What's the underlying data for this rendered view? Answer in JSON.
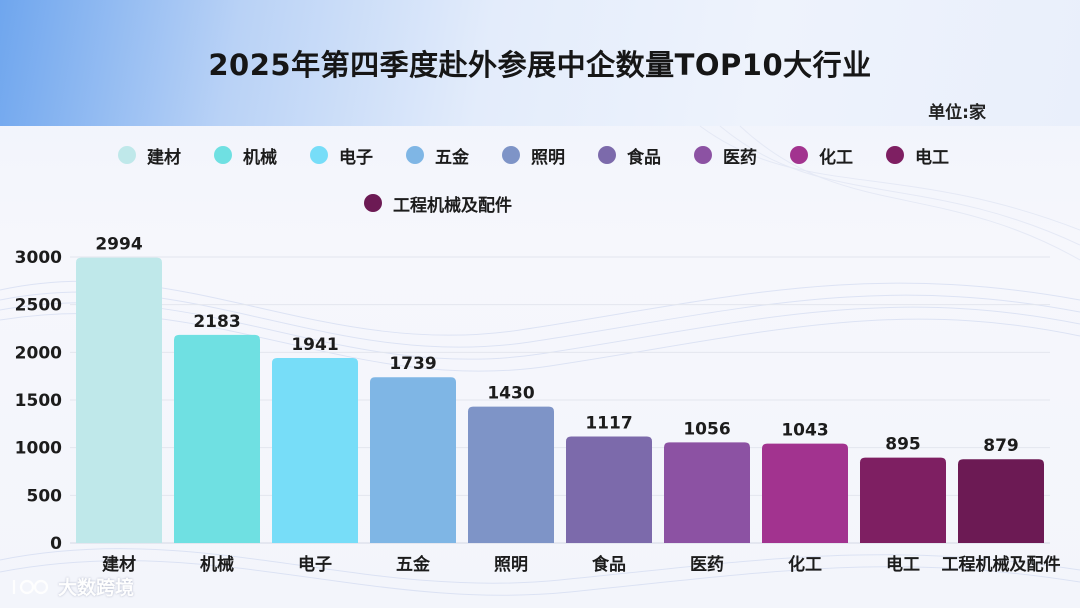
{
  "title": "2025年第四季度赴外参展中企数量TOP10大行业",
  "unit": "单位:家",
  "watermark": "大数跨境",
  "chart_data": {
    "type": "bar",
    "title": "2025年第四季度赴外参展中企数量TOP10大行业",
    "xlabel": "",
    "ylabel": "",
    "ylim": [
      0,
      3000
    ],
    "yticks": [
      0,
      500,
      1000,
      1500,
      2000,
      2500,
      3000
    ],
    "grid": true,
    "legend_position": "top",
    "categories": [
      "建材",
      "机械",
      "电子",
      "五金",
      "照明",
      "食品",
      "医药",
      "化工",
      "电工",
      "工程机械及配件"
    ],
    "values": [
      2994,
      2183,
      1941,
      1739,
      1430,
      1117,
      1056,
      1043,
      895,
      879
    ],
    "colors": [
      "#bfe8ea",
      "#6fe0e2",
      "#77ddf8",
      "#7fb6e5",
      "#7e94c7",
      "#7c6aab",
      "#8c52a3",
      "#a2338f",
      "#7e1f62",
      "#6c1a54"
    ]
  }
}
